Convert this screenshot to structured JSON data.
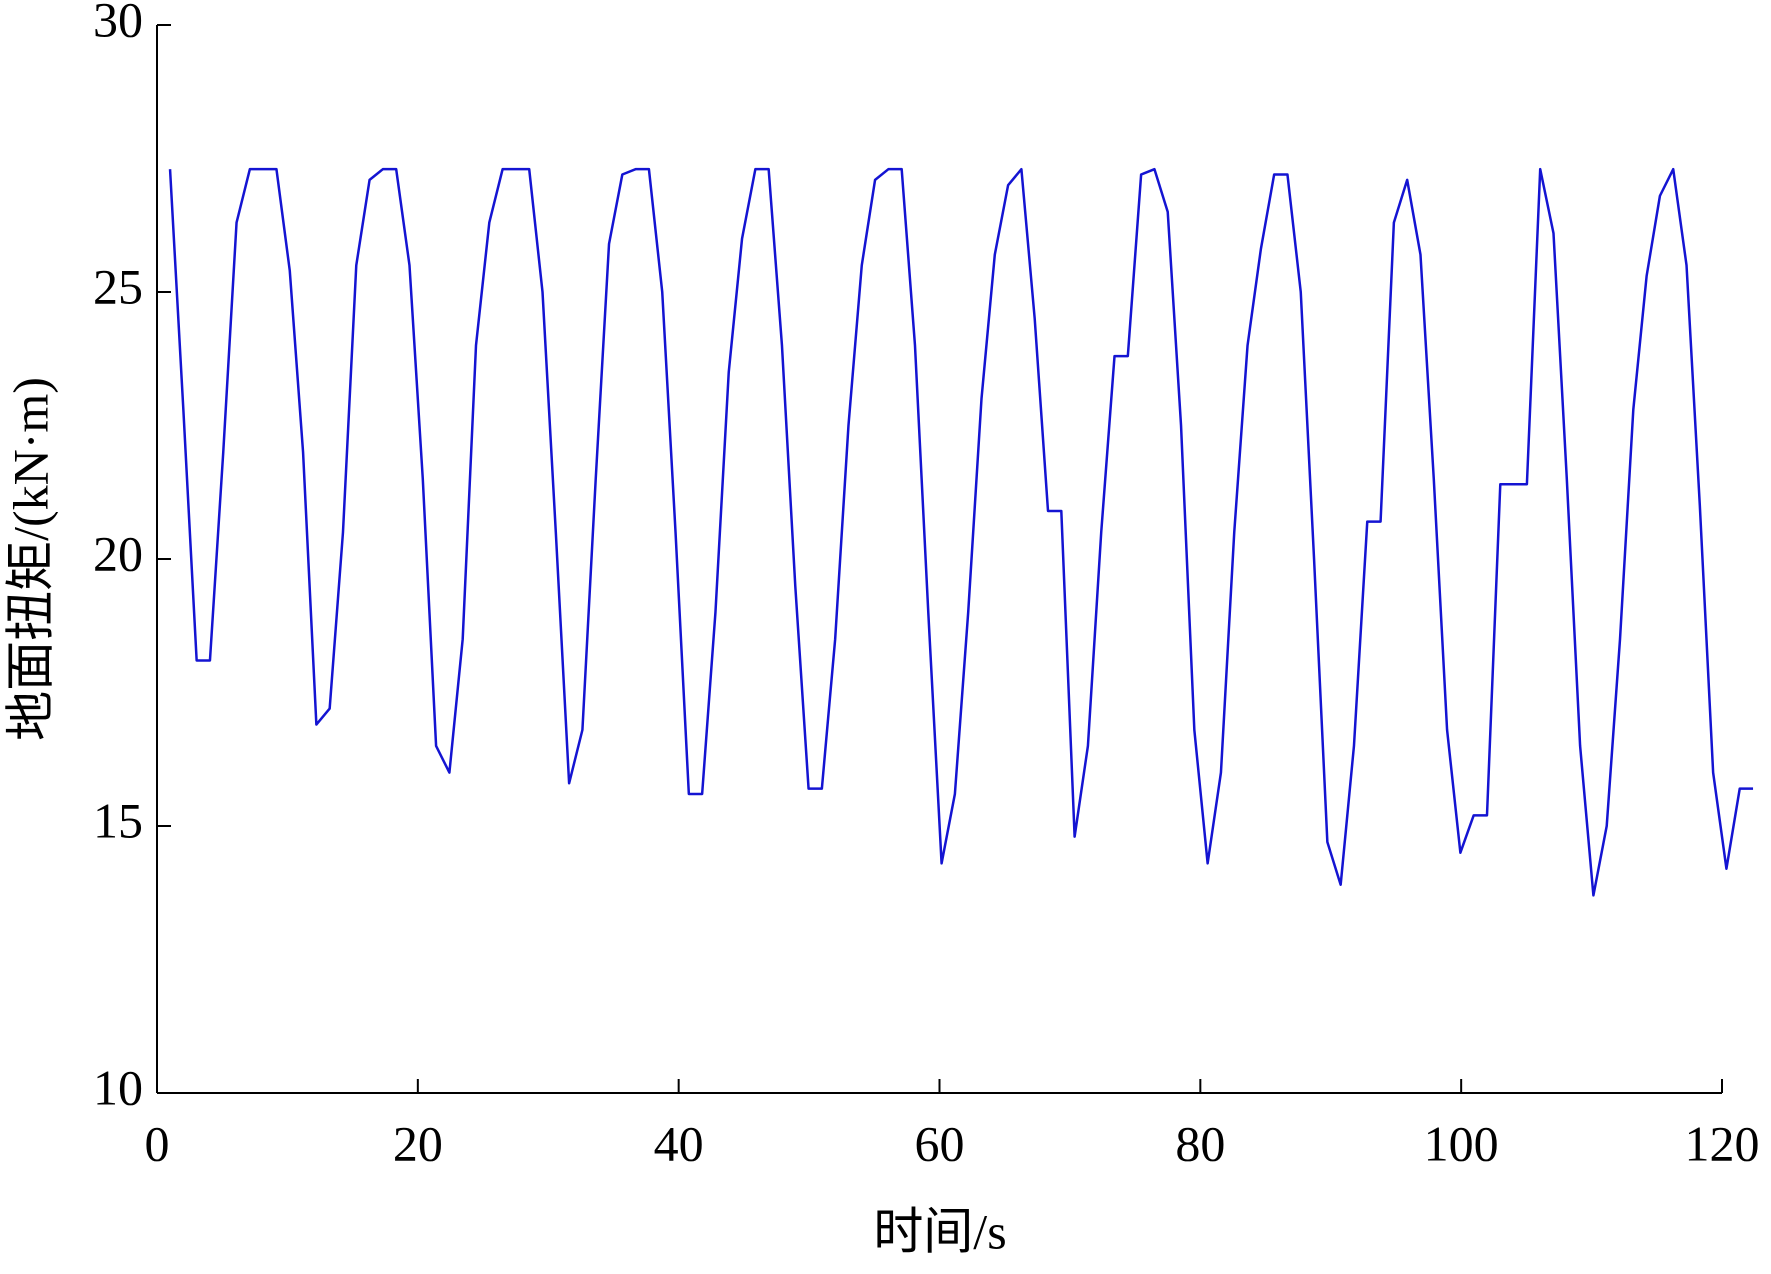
{
  "chart_data": {
    "type": "line",
    "xlabel": "时间/s",
    "ylabel": "地面扭矩/(kN·m)",
    "x": [
      1,
      2.02,
      3.04,
      4.06,
      5.08,
      6.1,
      7.12,
      8.14,
      9.16,
      10.18,
      11.2,
      12.22,
      13.24,
      14.26,
      15.28,
      16.3,
      17.32,
      18.34,
      19.36,
      20.38,
      21.4,
      22.42,
      23.44,
      24.46,
      25.48,
      26.5,
      27.52,
      28.54,
      29.56,
      30.58,
      31.6,
      32.62,
      33.64,
      34.66,
      35.68,
      36.7,
      37.72,
      38.74,
      39.76,
      40.78,
      41.8,
      42.82,
      43.84,
      44.86,
      45.88,
      46.9,
      47.92,
      48.94,
      49.96,
      50.98,
      52,
      53.02,
      54.04,
      55.06,
      56.08,
      57.1,
      58.12,
      59.14,
      60.16,
      61.18,
      62.2,
      63.22,
      64.24,
      65.26,
      66.28,
      67.3,
      68.32,
      69.34,
      70.36,
      71.38,
      72.4,
      73.42,
      74.44,
      75.46,
      76.48,
      77.5,
      78.52,
      79.54,
      80.56,
      81.58,
      82.6,
      83.62,
      84.64,
      85.66,
      86.68,
      87.7,
      88.72,
      89.74,
      90.76,
      91.78,
      92.8,
      93.82,
      94.84,
      95.86,
      96.88,
      97.9,
      98.92,
      99.94,
      100.96,
      101.98,
      103,
      104.02,
      105.04,
      106.06,
      107.08,
      108.1,
      109.12,
      110.14,
      111.16,
      112.18,
      113.2,
      114.22,
      115.24,
      116.26,
      117.28,
      118.3,
      119.32,
      120.34,
      121.36,
      122.38
    ],
    "series": [
      {
        "color": "#1414d2",
        "values": [
          27.3,
          22.8,
          18.1,
          18.1,
          22,
          26.3,
          27.3,
          27.3,
          27.3,
          25.4,
          22,
          16.9,
          17.2,
          20.5,
          25.5,
          27.1,
          27.3,
          27.3,
          25.5,
          21.5,
          16.5,
          16,
          18.5,
          24,
          26.3,
          27.3,
          27.3,
          27.3,
          25,
          20.5,
          15.8,
          16.8,
          21.5,
          25.9,
          27.2,
          27.3,
          27.3,
          25,
          20.5,
          15.6,
          15.6,
          19,
          23.5,
          26,
          27.3,
          27.3,
          24,
          19.5,
          15.7,
          15.7,
          18.5,
          22.5,
          25.5,
          27.1,
          27.3,
          27.3,
          24,
          19,
          14.3,
          15.6,
          19,
          23,
          25.7,
          27,
          27.3,
          24.5,
          20.9,
          20.9,
          14.8,
          16.5,
          20.5,
          23.8,
          23.8,
          27.2,
          27.3,
          26.5,
          22.5,
          16.8,
          14.3,
          16,
          20.5,
          24,
          25.8,
          27.2,
          27.2,
          25,
          20,
          14.7,
          13.9,
          16.5,
          20.7,
          20.7,
          26.3,
          27.1,
          25.7,
          21.5,
          16.8,
          14.5,
          15.2,
          15.2,
          21.4,
          21.4,
          21.4,
          27.3,
          26.1,
          21.5,
          16.5,
          13.7,
          15,
          18.5,
          22.8,
          25.3,
          26.8,
          27.3,
          25.5,
          21,
          16,
          14.2,
          15.7,
          15.7
        ]
      }
    ],
    "xlim": [
      0,
      120
    ],
    "xticks": [
      0,
      20,
      40,
      60,
      80,
      100,
      120
    ],
    "ylim": [
      10,
      30
    ],
    "yticks": [
      10,
      15,
      20,
      25,
      30
    ]
  }
}
